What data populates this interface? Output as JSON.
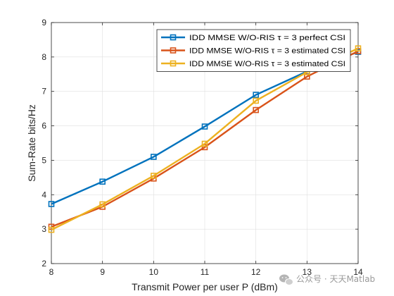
{
  "chart_data": {
    "type": "line",
    "x": [
      8,
      9,
      10,
      11,
      12,
      13,
      14
    ],
    "xlabel": "Transmit Power per user P (dBm)",
    "ylabel": "Sum-Rate bits/Hz",
    "xlim": [
      8,
      14
    ],
    "ylim": [
      2,
      9
    ],
    "xticks": [
      "8",
      "9",
      "10",
      "11",
      "12",
      "13",
      "14"
    ],
    "yticks": [
      "2",
      "3",
      "4",
      "5",
      "6",
      "7",
      "8",
      "9"
    ],
    "grid": true,
    "legend_position": "top-right",
    "series": [
      {
        "name": "IDD MMSE W/O-RIS τ = 3 perfect CSI",
        "color": "#0072BD",
        "marker": "square",
        "values": [
          3.73,
          4.38,
          5.1,
          5.98,
          6.9,
          7.58,
          8.15
        ]
      },
      {
        "name": "IDD MMSE W/O-RIS τ = 3 estimated CSI",
        "color": "#D95319",
        "marker": "square",
        "values": [
          3.07,
          3.65,
          4.47,
          5.38,
          6.46,
          7.43,
          8.17
        ]
      },
      {
        "name": "IDD MMSE W/O-RIS τ = 3 estimated CSI",
        "color": "#EDB120",
        "marker": "square",
        "values": [
          2.98,
          3.72,
          4.55,
          5.48,
          6.73,
          7.56,
          8.25
        ]
      }
    ]
  },
  "watermark": {
    "text": "公众号 · 天天Matlab",
    "icon": "wechat-icon"
  }
}
